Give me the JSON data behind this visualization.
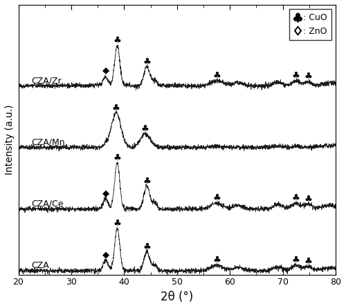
{
  "xlabel": "2θ (°)",
  "ylabel": "Intensity (a.u.)",
  "xlim": [
    20,
    80
  ],
  "ylim": [
    -0.02,
    1.38
  ],
  "x_ticks": [
    20,
    30,
    40,
    50,
    60,
    70,
    80
  ],
  "labels": [
    "CZA",
    "CZA/Ce",
    "CZA/Mn",
    "CZA/Zr"
  ],
  "offsets": [
    0.0,
    0.32,
    0.64,
    0.96
  ],
  "background_color": "#ffffff",
  "line_color": "#1a1a1a",
  "noise_amplitude": 0.006,
  "legend_marker_cuo": "♣",
  "legend_marker_zno": "◆",
  "figsize": [
    5.0,
    4.46
  ],
  "dpi": 100
}
